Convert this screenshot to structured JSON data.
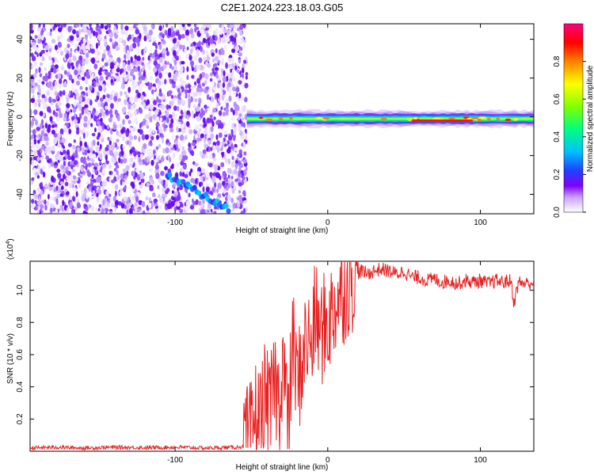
{
  "title": "C2E1.2024.223.18.03.G05",
  "chart_data": [
    {
      "type": "heatmap",
      "xlabel": "Height of straight line (km)",
      "ylabel": "Frequency (Hz)",
      "xlim": [
        -195,
        135
      ],
      "ylim": [
        -50,
        48
      ],
      "x_ticks": [
        -100,
        0,
        100
      ],
      "x_tick_labels": [
        "-100",
        "0",
        "100"
      ],
      "y_ticks": [
        -40,
        -20,
        0,
        20,
        40
      ],
      "y_tick_labels": [
        "-40",
        "-20",
        "0",
        "20",
        "40"
      ],
      "noise_region_x": [
        -195,
        -53
      ],
      "signal_cutoff_x": -53,
      "carrier_band": {
        "x_start": -53,
        "x_end": 135,
        "freq_center": -1,
        "freq_halfwidth": 3
      },
      "strong_segment": {
        "x_start": 55,
        "x_end": 95,
        "freq": -2
      },
      "diagonal_trace": {
        "x_start": -105,
        "freq_start": -30,
        "x_end": -65,
        "freq_end": -48
      },
      "colorbar": {
        "label": "Normalized spectral amplitude",
        "range": [
          0,
          1
        ],
        "ticks": [
          0.0,
          0.2,
          0.4,
          0.6,
          0.8
        ],
        "tick_labels": [
          "0.0",
          "0.2",
          "0.4",
          "0.6",
          "0.8"
        ],
        "colors": [
          "#ffffff",
          "#8000ff",
          "#0040ff",
          "#00c0ff",
          "#00ff80",
          "#80ff00",
          "#ffff00",
          "#ff8000",
          "#ff0000",
          "#ff0080"
        ]
      }
    },
    {
      "type": "line",
      "xlabel": "Height of straight line (km)",
      "ylabel": "SNR (10 * v/v)",
      "multiplier_label": "(x10",
      "multiplier_exp": "4",
      "multiplier_close": ")",
      "xlim": [
        -195,
        135
      ],
      "ylim": [
        0.0,
        1.18
      ],
      "x_ticks": [
        -100,
        0,
        100
      ],
      "x_tick_labels": [
        "-100",
        "0",
        "100"
      ],
      "y_ticks": [
        0.2,
        0.4,
        0.6,
        0.8,
        1.0
      ],
      "y_tick_labels": [
        "0.2",
        "0.4",
        "0.6",
        "0.8",
        "1.0"
      ],
      "line_color": "#e82020",
      "series": [
        {
          "x": [
            -195,
            -180,
            -160,
            -140,
            -120,
            -100,
            -80,
            -60,
            -55,
            -50,
            -47,
            -44,
            -41,
            -38,
            -35,
            -32,
            -29,
            -26,
            -23,
            -20,
            -17,
            -14,
            -11,
            -8,
            -5,
            -2,
            0,
            3,
            6,
            10,
            14,
            18,
            22,
            26,
            30,
            35,
            40,
            45,
            50,
            55,
            60,
            65,
            70,
            75,
            80,
            85,
            90,
            95,
            100,
            105,
            110,
            115,
            120,
            122,
            125,
            130,
            135
          ],
          "y": [
            0.02,
            0.025,
            0.02,
            0.025,
            0.022,
            0.025,
            0.02,
            0.025,
            0.03,
            0.1,
            0.25,
            0.18,
            0.35,
            0.2,
            0.45,
            0.3,
            0.6,
            0.1,
            0.7,
            0.4,
            0.55,
            0.7,
            0.65,
            0.85,
            0.72,
            0.78,
            0.8,
            0.85,
            0.95,
            1.0,
            1.05,
            1.1,
            1.12,
            1.1,
            1.12,
            1.13,
            1.12,
            1.1,
            1.12,
            1.08,
            1.08,
            1.06,
            1.07,
            1.05,
            1.06,
            1.04,
            1.06,
            1.05,
            1.06,
            1.04,
            1.06,
            1.05,
            1.06,
            0.92,
            1.05,
            1.04,
            1.05
          ]
        }
      ]
    }
  ]
}
